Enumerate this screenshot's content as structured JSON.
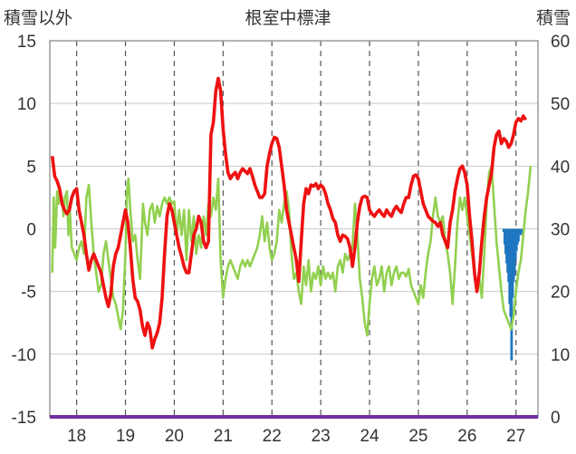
{
  "chart_data": {
    "type": "line",
    "title": "根室中標津",
    "left_axis_label": "積雪以外",
    "right_axis_label": "積雪",
    "left_ylim": [
      -15,
      15
    ],
    "left_ticks": [
      -15,
      -10,
      -5,
      0,
      5,
      10,
      15
    ],
    "right_ylim": [
      0,
      60
    ],
    "right_ticks": [
      0,
      10,
      20,
      30,
      40,
      50,
      60
    ],
    "x_tick_labels": [
      "18",
      "19",
      "20",
      "21",
      "22",
      "23",
      "24",
      "25",
      "26",
      "27"
    ],
    "grid": true,
    "colors": {
      "red_series": "#ee1111",
      "green_series": "#92d050",
      "snow_bars": "#1f77c0",
      "baseline": "#7030a0"
    },
    "red_series": [
      [
        17.5,
        5.8
      ],
      [
        17.55,
        4.2
      ],
      [
        17.6,
        3.8
      ],
      [
        17.65,
        3.2
      ],
      [
        17.7,
        2.0
      ],
      [
        17.75,
        1.5
      ],
      [
        17.8,
        1.2
      ],
      [
        17.85,
        1.5
      ],
      [
        17.9,
        2.5
      ],
      [
        17.95,
        3.0
      ],
      [
        18.0,
        3.2
      ],
      [
        18.05,
        1.5
      ],
      [
        18.1,
        0.5
      ],
      [
        18.15,
        -0.5
      ],
      [
        18.2,
        -2.0
      ],
      [
        18.25,
        -3.3
      ],
      [
        18.3,
        -2.5
      ],
      [
        18.35,
        -2.0
      ],
      [
        18.4,
        -2.5
      ],
      [
        18.45,
        -3.0
      ],
      [
        18.5,
        -3.5
      ],
      [
        18.55,
        -4.5
      ],
      [
        18.6,
        -5.5
      ],
      [
        18.65,
        -6.2
      ],
      [
        18.7,
        -5.2
      ],
      [
        18.75,
        -3.0
      ],
      [
        18.8,
        -2.0
      ],
      [
        18.85,
        -1.5
      ],
      [
        18.9,
        -0.5
      ],
      [
        18.95,
        0.5
      ],
      [
        19.0,
        1.5
      ],
      [
        19.05,
        0.5
      ],
      [
        19.1,
        -1.5
      ],
      [
        19.15,
        -4.0
      ],
      [
        19.2,
        -5.5
      ],
      [
        19.25,
        -5.8
      ],
      [
        19.3,
        -6.5
      ],
      [
        19.35,
        -7.8
      ],
      [
        19.4,
        -8.5
      ],
      [
        19.45,
        -7.5
      ],
      [
        19.5,
        -8.0
      ],
      [
        19.55,
        -9.5
      ],
      [
        19.6,
        -8.8
      ],
      [
        19.65,
        -8.3
      ],
      [
        19.7,
        -7.5
      ],
      [
        19.75,
        -5.5
      ],
      [
        19.8,
        -2.0
      ],
      [
        19.85,
        1.0
      ],
      [
        19.9,
        2.0
      ],
      [
        19.95,
        1.5
      ],
      [
        20.0,
        0.5
      ],
      [
        20.05,
        -0.5
      ],
      [
        20.1,
        -1.5
      ],
      [
        20.15,
        -2.2
      ],
      [
        20.2,
        -3.0
      ],
      [
        20.25,
        -3.5
      ],
      [
        20.3,
        -3.5
      ],
      [
        20.35,
        -2.0
      ],
      [
        20.4,
        -0.5
      ],
      [
        20.45,
        0.0
      ],
      [
        20.5,
        1.0
      ],
      [
        20.55,
        0.5
      ],
      [
        20.6,
        -1.0
      ],
      [
        20.65,
        -1.5
      ],
      [
        20.7,
        -1.0
      ],
      [
        20.75,
        7.5
      ],
      [
        20.8,
        8.5
      ],
      [
        20.85,
        11.0
      ],
      [
        20.9,
        12.0
      ],
      [
        20.95,
        11.0
      ],
      [
        21.0,
        8.0
      ],
      [
        21.05,
        6.0
      ],
      [
        21.1,
        4.5
      ],
      [
        21.15,
        4.0
      ],
      [
        21.2,
        4.3
      ],
      [
        21.25,
        4.5
      ],
      [
        21.3,
        4.0
      ],
      [
        21.35,
        4.5
      ],
      [
        21.4,
        4.8
      ],
      [
        21.45,
        4.6
      ],
      [
        21.5,
        4.4
      ],
      [
        21.55,
        4.8
      ],
      [
        21.6,
        4.2
      ],
      [
        21.65,
        3.5
      ],
      [
        21.7,
        3.0
      ],
      [
        21.75,
        2.5
      ],
      [
        21.8,
        2.5
      ],
      [
        21.85,
        2.8
      ],
      [
        21.9,
        5.0
      ],
      [
        21.95,
        6.0
      ],
      [
        22.0,
        6.8
      ],
      [
        22.05,
        7.3
      ],
      [
        22.1,
        7.2
      ],
      [
        22.15,
        6.5
      ],
      [
        22.2,
        5.0
      ],
      [
        22.25,
        3.5
      ],
      [
        22.3,
        1.5
      ],
      [
        22.35,
        0.5
      ],
      [
        22.4,
        -0.5
      ],
      [
        22.45,
        -1.5
      ],
      [
        22.5,
        -2.5
      ],
      [
        22.55,
        -4.2
      ],
      [
        22.6,
        -1.0
      ],
      [
        22.65,
        2.0
      ],
      [
        22.7,
        3.2
      ],
      [
        22.75,
        2.8
      ],
      [
        22.8,
        3.5
      ],
      [
        22.85,
        3.4
      ],
      [
        22.9,
        3.6
      ],
      [
        22.95,
        3.2
      ],
      [
        23.0,
        3.5
      ],
      [
        23.05,
        3.3
      ],
      [
        23.1,
        2.8
      ],
      [
        23.15,
        2.0
      ],
      [
        23.2,
        1.5
      ],
      [
        23.25,
        0.8
      ],
      [
        23.3,
        0.5
      ],
      [
        23.35,
        -0.5
      ],
      [
        23.4,
        -1.0
      ],
      [
        23.45,
        -0.5
      ],
      [
        23.5,
        -0.6
      ],
      [
        23.55,
        -0.8
      ],
      [
        23.6,
        -1.5
      ],
      [
        23.65,
        -3.0
      ],
      [
        23.7,
        -1.5
      ],
      [
        23.75,
        0.5
      ],
      [
        23.8,
        1.8
      ],
      [
        23.85,
        2.5
      ],
      [
        23.9,
        2.6
      ],
      [
        23.95,
        2.5
      ],
      [
        24.0,
        1.5
      ],
      [
        24.05,
        1.2
      ],
      [
        24.1,
        1.0
      ],
      [
        24.15,
        1.3
      ],
      [
        24.2,
        1.5
      ],
      [
        24.25,
        1.2
      ],
      [
        24.3,
        1.0
      ],
      [
        24.35,
        1.5
      ],
      [
        24.4,
        1.2
      ],
      [
        24.45,
        1.0
      ],
      [
        24.5,
        1.5
      ],
      [
        24.55,
        1.8
      ],
      [
        24.6,
        1.5
      ],
      [
        24.65,
        1.3
      ],
      [
        24.7,
        2.0
      ],
      [
        24.75,
        2.5
      ],
      [
        24.8,
        2.5
      ],
      [
        24.85,
        3.5
      ],
      [
        24.9,
        4.2
      ],
      [
        24.95,
        4.3
      ],
      [
        25.0,
        4.0
      ],
      [
        25.05,
        3.0
      ],
      [
        25.1,
        2.0
      ],
      [
        25.15,
        1.5
      ],
      [
        25.2,
        1.0
      ],
      [
        25.25,
        0.8
      ],
      [
        25.3,
        0.6
      ],
      [
        25.35,
        0.5
      ],
      [
        25.4,
        0.2
      ],
      [
        25.45,
        0.5
      ],
      [
        25.5,
        -0.5
      ],
      [
        25.55,
        -1.0
      ],
      [
        25.6,
        -1.5
      ],
      [
        25.65,
        0.5
      ],
      [
        25.7,
        1.5
      ],
      [
        25.75,
        3.0
      ],
      [
        25.8,
        4.0
      ],
      [
        25.85,
        4.8
      ],
      [
        25.9,
        5.0
      ],
      [
        25.95,
        4.5
      ],
      [
        26.0,
        3.5
      ],
      [
        26.05,
        1.0
      ],
      [
        26.1,
        -1.0
      ],
      [
        26.15,
        -3.5
      ],
      [
        26.2,
        -5.0
      ],
      [
        26.25,
        -3.5
      ],
      [
        26.3,
        -1.0
      ],
      [
        26.35,
        1.0
      ],
      [
        26.4,
        2.5
      ],
      [
        26.45,
        3.5
      ],
      [
        26.5,
        4.5
      ],
      [
        26.55,
        6.5
      ],
      [
        26.6,
        7.5
      ],
      [
        26.65,
        7.8
      ],
      [
        26.7,
        6.8
      ],
      [
        26.75,
        7.2
      ],
      [
        26.8,
        7.0
      ],
      [
        26.85,
        6.5
      ],
      [
        26.9,
        6.8
      ],
      [
        26.95,
        7.5
      ],
      [
        27.0,
        8.5
      ],
      [
        27.05,
        8.8
      ],
      [
        27.1,
        8.6
      ],
      [
        27.15,
        9.0
      ],
      [
        27.2,
        8.7
      ]
    ],
    "green_series": [
      [
        17.5,
        -3.5
      ],
      [
        17.53,
        2.5
      ],
      [
        17.56,
        -1.5
      ],
      [
        17.6,
        3.0
      ],
      [
        17.63,
        2.0
      ],
      [
        17.66,
        3.0
      ],
      [
        17.7,
        2.5
      ],
      [
        17.73,
        1.0
      ],
      [
        17.76,
        2.5
      ],
      [
        17.8,
        3.0
      ],
      [
        17.83,
        -0.5
      ],
      [
        17.86,
        1.5
      ],
      [
        17.9,
        -1.5
      ],
      [
        17.95,
        -2.0
      ],
      [
        18.0,
        -2.5
      ],
      [
        18.05,
        -1.5
      ],
      [
        18.1,
        -1.0
      ],
      [
        18.15,
        -2.0
      ],
      [
        18.2,
        2.5
      ],
      [
        18.25,
        3.5
      ],
      [
        18.3,
        0.5
      ],
      [
        18.35,
        -2.0
      ],
      [
        18.4,
        -3.5
      ],
      [
        18.45,
        -5.0
      ],
      [
        18.5,
        -4.5
      ],
      [
        18.55,
        -2.0
      ],
      [
        18.6,
        -1.0
      ],
      [
        18.65,
        -2.5
      ],
      [
        18.7,
        -4.0
      ],
      [
        18.75,
        -5.5
      ],
      [
        18.8,
        -6.0
      ],
      [
        18.85,
        -7.0
      ],
      [
        18.9,
        -8.0
      ],
      [
        18.95,
        -6.5
      ],
      [
        19.0,
        -2.0
      ],
      [
        19.03,
        3.0
      ],
      [
        19.06,
        4.0
      ],
      [
        19.1,
        1.5
      ],
      [
        19.15,
        -1.0
      ],
      [
        19.2,
        -0.5
      ],
      [
        19.25,
        -2.5
      ],
      [
        19.3,
        -4.0
      ],
      [
        19.33,
        -1.0
      ],
      [
        19.36,
        2.0
      ],
      [
        19.4,
        0.5
      ],
      [
        19.45,
        -0.5
      ],
      [
        19.5,
        1.5
      ],
      [
        19.55,
        2.0
      ],
      [
        19.6,
        0.5
      ],
      [
        19.65,
        1.8
      ],
      [
        19.7,
        1.0
      ],
      [
        19.75,
        2.0
      ],
      [
        19.8,
        2.5
      ],
      [
        19.85,
        2.0
      ],
      [
        19.9,
        2.5
      ],
      [
        19.95,
        2.0
      ],
      [
        20.0,
        2.2
      ],
      [
        20.05,
        -0.5
      ],
      [
        20.1,
        1.5
      ],
      [
        20.15,
        -0.5
      ],
      [
        20.2,
        1.5
      ],
      [
        20.25,
        -2.5
      ],
      [
        20.3,
        1.5
      ],
      [
        20.35,
        -1.0
      ],
      [
        20.4,
        1.0
      ],
      [
        20.45,
        -2.0
      ],
      [
        20.5,
        -0.5
      ],
      [
        20.55,
        -1.5
      ],
      [
        20.6,
        1.0
      ],
      [
        20.65,
        -0.5
      ],
      [
        20.7,
        2.0
      ],
      [
        20.75,
        1.0
      ],
      [
        20.8,
        2.5
      ],
      [
        20.85,
        1.5
      ],
      [
        20.9,
        4.0
      ],
      [
        20.95,
        -2.5
      ],
      [
        21.0,
        -5.5
      ],
      [
        21.05,
        -4.0
      ],
      [
        21.1,
        -3.0
      ],
      [
        21.15,
        -2.5
      ],
      [
        21.2,
        -3.0
      ],
      [
        21.25,
        -3.5
      ],
      [
        21.3,
        -4.0
      ],
      [
        21.35,
        -3.0
      ],
      [
        21.4,
        -2.5
      ],
      [
        21.45,
        -3.0
      ],
      [
        21.5,
        -2.5
      ],
      [
        21.55,
        -3.0
      ],
      [
        21.6,
        -2.5
      ],
      [
        21.65,
        -2.0
      ],
      [
        21.7,
        -1.5
      ],
      [
        21.75,
        -0.5
      ],
      [
        21.8,
        1.0
      ],
      [
        21.85,
        -1.0
      ],
      [
        21.9,
        0.5
      ],
      [
        21.95,
        -1.5
      ],
      [
        22.0,
        -2.5
      ],
      [
        22.05,
        -2.0
      ],
      [
        22.1,
        -1.0
      ],
      [
        22.15,
        1.5
      ],
      [
        22.2,
        0.5
      ],
      [
        22.25,
        2.0
      ],
      [
        22.3,
        3.0
      ],
      [
        22.35,
        1.5
      ],
      [
        22.4,
        -2.0
      ],
      [
        22.45,
        -4.0
      ],
      [
        22.5,
        -3.5
      ],
      [
        22.55,
        -5.0
      ],
      [
        22.6,
        -6.0
      ],
      [
        22.65,
        -3.0
      ],
      [
        22.7,
        -4.5
      ],
      [
        22.75,
        -2.5
      ],
      [
        22.8,
        -5.0
      ],
      [
        22.85,
        -3.5
      ],
      [
        22.9,
        -4.0
      ],
      [
        22.95,
        -3.0
      ],
      [
        23.0,
        -4.5
      ],
      [
        23.05,
        -3.0
      ],
      [
        23.1,
        -4.0
      ],
      [
        23.15,
        -3.5
      ],
      [
        23.2,
        -4.0
      ],
      [
        23.25,
        -3.5
      ],
      [
        23.3,
        -5.0
      ],
      [
        23.35,
        -3.0
      ],
      [
        23.4,
        -2.5
      ],
      [
        23.45,
        -3.5
      ],
      [
        23.5,
        -2.0
      ],
      [
        23.55,
        -2.5
      ],
      [
        23.6,
        -2.0
      ],
      [
        23.65,
        -1.5
      ],
      [
        23.7,
        2.0
      ],
      [
        23.75,
        -0.5
      ],
      [
        23.8,
        -4.0
      ],
      [
        23.85,
        -5.5
      ],
      [
        23.9,
        -7.5
      ],
      [
        23.95,
        -8.5
      ],
      [
        24.0,
        -6.0
      ],
      [
        24.05,
        -4.0
      ],
      [
        24.1,
        -3.0
      ],
      [
        24.15,
        -4.5
      ],
      [
        24.2,
        -4.0
      ],
      [
        24.25,
        -3.0
      ],
      [
        24.3,
        -5.0
      ],
      [
        24.35,
        -3.5
      ],
      [
        24.4,
        -3.0
      ],
      [
        24.45,
        -4.5
      ],
      [
        24.5,
        -3.5
      ],
      [
        24.55,
        -3.0
      ],
      [
        24.6,
        -4.0
      ],
      [
        24.65,
        -3.5
      ],
      [
        24.7,
        -3.5
      ],
      [
        24.75,
        -3.8
      ],
      [
        24.8,
        -3.2
      ],
      [
        24.85,
        -4.5
      ],
      [
        24.9,
        -5.0
      ],
      [
        24.95,
        -5.5
      ],
      [
        25.0,
        -6.0
      ],
      [
        25.05,
        -4.5
      ],
      [
        25.1,
        -5.5
      ],
      [
        25.15,
        -3.5
      ],
      [
        25.2,
        -2.0
      ],
      [
        25.25,
        -1.0
      ],
      [
        25.3,
        1.0
      ],
      [
        25.35,
        2.5
      ],
      [
        25.4,
        1.0
      ],
      [
        25.45,
        0.5
      ],
      [
        25.5,
        1.0
      ],
      [
        25.55,
        -1.0
      ],
      [
        25.6,
        -2.0
      ],
      [
        25.65,
        -3.5
      ],
      [
        25.7,
        -6.0
      ],
      [
        25.75,
        -3.0
      ],
      [
        25.8,
        0.5
      ],
      [
        25.85,
        2.5
      ],
      [
        25.9,
        1.5
      ],
      [
        25.95,
        2.5
      ],
      [
        26.0,
        1.0
      ],
      [
        26.05,
        -0.5
      ],
      [
        26.1,
        -2.0
      ],
      [
        26.15,
        -3.5
      ],
      [
        26.2,
        -5.0
      ],
      [
        26.25,
        -4.0
      ],
      [
        26.3,
        -5.5
      ],
      [
        26.35,
        -2.0
      ],
      [
        26.4,
        2.0
      ],
      [
        26.45,
        4.5
      ],
      [
        26.5,
        5.0
      ],
      [
        26.55,
        2.0
      ],
      [
        26.6,
        -1.0
      ],
      [
        26.65,
        -3.0
      ],
      [
        26.7,
        -5.0
      ],
      [
        26.75,
        -6.5
      ],
      [
        26.8,
        -7.0
      ],
      [
        26.85,
        -7.5
      ],
      [
        26.9,
        -8.0
      ],
      [
        26.95,
        -7.0
      ],
      [
        27.0,
        -5.0
      ],
      [
        27.05,
        -3.5
      ],
      [
        27.1,
        -2.5
      ],
      [
        27.15,
        -0.5
      ],
      [
        27.2,
        1.5
      ],
      [
        27.25,
        3.0
      ],
      [
        27.3,
        5.0
      ]
    ],
    "snow_bars": [
      [
        26.75,
        29.5
      ],
      [
        26.77,
        27.5
      ],
      [
        26.79,
        26.0
      ],
      [
        26.81,
        24.5
      ],
      [
        26.83,
        23.0
      ],
      [
        26.85,
        21.5
      ],
      [
        26.87,
        18.0
      ],
      [
        26.89,
        16.0
      ],
      [
        26.91,
        9.0
      ],
      [
        26.93,
        19.0
      ],
      [
        26.95,
        21.5
      ],
      [
        26.97,
        22.5
      ],
      [
        26.99,
        25.0
      ],
      [
        27.01,
        26.5
      ],
      [
        27.03,
        27.5
      ],
      [
        27.05,
        28.0
      ],
      [
        27.07,
        29.0
      ],
      [
        27.09,
        29.5
      ],
      [
        27.11,
        29.0
      ]
    ]
  }
}
